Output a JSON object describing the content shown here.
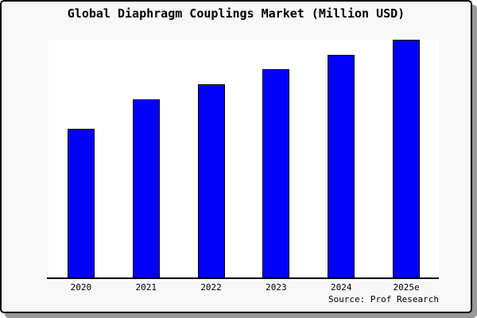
{
  "chart_data": {
    "type": "bar",
    "title": "Global Diaphragm Couplings Market (Million USD)",
    "categories": [
      "2020",
      "2021",
      "2022",
      "2023",
      "2024",
      "2025e"
    ],
    "values": [
      62.7,
      75.0,
      81.3,
      87.7,
      93.7,
      100
    ],
    "ylim": [
      0,
      100
    ],
    "xlabel": "",
    "ylabel": "",
    "grid": false,
    "y_axis_visible": false,
    "legend": "none",
    "bar_color": "#0101FB",
    "bar_border_color": "#000000"
  },
  "footer": {
    "source_label": "Source: Prof Research"
  },
  "colors": {
    "card_background": "#F8F8F8",
    "plot_background": "#FFFFFF",
    "card_border": "#000000",
    "shadow": "#999999",
    "axis": "#000000",
    "text": "#000000"
  }
}
